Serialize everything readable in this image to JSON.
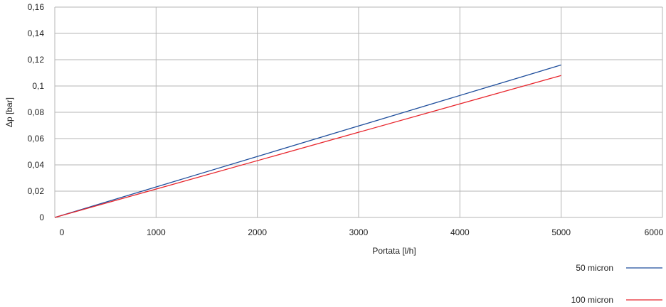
{
  "chart_data": {
    "type": "line",
    "title": "",
    "xlabel": "Portata [l/h]",
    "ylabel": "Δp [bar]",
    "xlim": [
      0,
      6000
    ],
    "ylim": [
      0,
      0.16
    ],
    "x_ticks": [
      0,
      1000,
      2000,
      3000,
      4000,
      5000,
      6000
    ],
    "x_tick_labels": [
      "0",
      "1000",
      "2000",
      "3000",
      "4000",
      "5000",
      "6000"
    ],
    "y_ticks": [
      0,
      0.02,
      0.04,
      0.06,
      0.08,
      0.1,
      0.12,
      0.14,
      0.16
    ],
    "y_tick_labels": [
      "0",
      "0,02",
      "0,04",
      "0,06",
      "0,08",
      "0,1",
      "0,12",
      "0,14",
      "0,16"
    ],
    "grid": true,
    "legend_position": "bottom-right",
    "series": [
      {
        "name": "50 micron",
        "color": "#1f4e9c",
        "x": [
          0,
          5000
        ],
        "y": [
          0,
          0.116
        ]
      },
      {
        "name": "100 micron",
        "color": "#e8262d",
        "x": [
          0,
          5000
        ],
        "y": [
          0,
          0.108
        ]
      }
    ]
  }
}
